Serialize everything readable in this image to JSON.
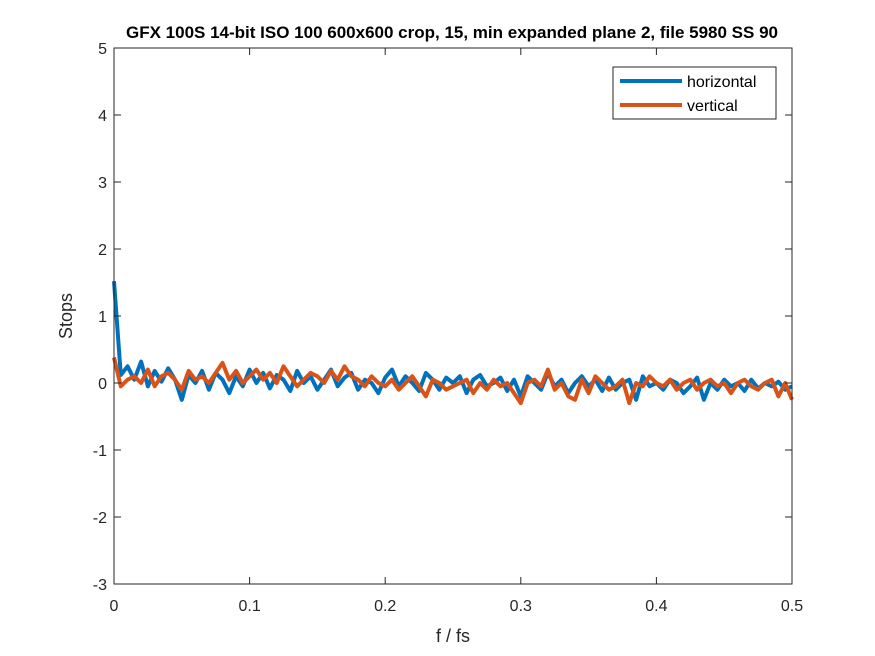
{
  "chart_data": {
    "type": "line",
    "title": "GFX 100S 14-bit ISO 100 600x600 crop, 15, min expanded plane 2, file 5980 SS 90",
    "xlabel": "f / fs",
    "ylabel": "Stops",
    "xlim": [
      0,
      0.5
    ],
    "ylim": [
      -3,
      5
    ],
    "xticks": [
      0,
      0.1,
      0.2,
      0.3,
      0.4,
      0.5
    ],
    "xtick_labels": [
      "0",
      "0.1",
      "0.2",
      "0.3",
      "0.4",
      "0.5"
    ],
    "yticks": [
      -3,
      -2,
      -1,
      0,
      1,
      2,
      3,
      4,
      5
    ],
    "ytick_labels": [
      "-3",
      "-2",
      "-1",
      "0",
      "1",
      "2",
      "3",
      "4",
      "5"
    ],
    "grid": false,
    "legend_position": "top-right",
    "series": [
      {
        "name": "horizontal",
        "color": "#0072BD",
        "x": [
          0,
          0.005,
          0.01,
          0.015,
          0.02,
          0.025,
          0.03,
          0.035,
          0.04,
          0.045,
          0.05,
          0.055,
          0.06,
          0.065,
          0.07,
          0.075,
          0.08,
          0.085,
          0.09,
          0.095,
          0.1,
          0.105,
          0.11,
          0.115,
          0.12,
          0.125,
          0.13,
          0.135,
          0.14,
          0.145,
          0.15,
          0.155,
          0.16,
          0.165,
          0.17,
          0.175,
          0.18,
          0.185,
          0.19,
          0.195,
          0.2,
          0.205,
          0.21,
          0.215,
          0.22,
          0.225,
          0.23,
          0.235,
          0.24,
          0.245,
          0.25,
          0.255,
          0.26,
          0.265,
          0.27,
          0.275,
          0.28,
          0.285,
          0.29,
          0.295,
          0.3,
          0.305,
          0.31,
          0.315,
          0.32,
          0.325,
          0.33,
          0.335,
          0.34,
          0.345,
          0.35,
          0.355,
          0.36,
          0.365,
          0.37,
          0.375,
          0.38,
          0.385,
          0.39,
          0.395,
          0.4,
          0.405,
          0.41,
          0.415,
          0.42,
          0.425,
          0.43,
          0.435,
          0.44,
          0.445,
          0.45,
          0.455,
          0.46,
          0.465,
          0.47,
          0.475,
          0.48,
          0.485,
          0.49,
          0.495,
          0.5
        ],
        "y": [
          1.52,
          0.12,
          0.25,
          0.05,
          0.32,
          -0.05,
          0.18,
          0.02,
          0.22,
          0.05,
          -0.25,
          0.12,
          0.0,
          0.18,
          -0.1,
          0.15,
          0.05,
          -0.15,
          0.1,
          -0.05,
          0.2,
          0.0,
          0.15,
          -0.08,
          0.12,
          0.05,
          -0.12,
          0.18,
          0.0,
          0.1,
          -0.1,
          0.05,
          0.2,
          -0.05,
          0.08,
          0.15,
          -0.1,
          0.05,
          0.0,
          -0.15,
          0.08,
          0.2,
          -0.05,
          0.1,
          0.0,
          -0.12,
          0.15,
          0.05,
          -0.1,
          0.08,
          0.0,
          0.1,
          -0.15,
          0.05,
          0.12,
          -0.05,
          0.0,
          0.08,
          -0.12,
          0.05,
          -0.2,
          0.1,
          0.0,
          -0.1,
          0.15,
          -0.05,
          0.05,
          -0.15,
          0.0,
          0.1,
          -0.05,
          0.05,
          -0.12,
          0.08,
          -0.1,
          0.0,
          0.05,
          -0.25,
          0.1,
          -0.05,
          0.0,
          -0.1,
          0.05,
          0.0,
          -0.15,
          -0.05,
          0.08,
          -0.25,
          0.0,
          -0.1,
          0.05,
          -0.05,
          0.0,
          -0.12,
          0.05,
          -0.08,
          0.0,
          -0.05,
          0.02,
          -0.1,
          -0.05
        ]
      },
      {
        "name": "vertical",
        "color": "#D95319",
        "x": [
          0,
          0.005,
          0.01,
          0.015,
          0.02,
          0.025,
          0.03,
          0.035,
          0.04,
          0.045,
          0.05,
          0.055,
          0.06,
          0.065,
          0.07,
          0.075,
          0.08,
          0.085,
          0.09,
          0.095,
          0.1,
          0.105,
          0.11,
          0.115,
          0.12,
          0.125,
          0.13,
          0.135,
          0.14,
          0.145,
          0.15,
          0.155,
          0.16,
          0.165,
          0.17,
          0.175,
          0.18,
          0.185,
          0.19,
          0.195,
          0.2,
          0.205,
          0.21,
          0.215,
          0.22,
          0.225,
          0.23,
          0.235,
          0.24,
          0.245,
          0.25,
          0.255,
          0.26,
          0.265,
          0.27,
          0.275,
          0.28,
          0.285,
          0.29,
          0.295,
          0.3,
          0.305,
          0.31,
          0.315,
          0.32,
          0.325,
          0.33,
          0.335,
          0.34,
          0.345,
          0.35,
          0.355,
          0.36,
          0.365,
          0.37,
          0.375,
          0.38,
          0.385,
          0.39,
          0.395,
          0.4,
          0.405,
          0.41,
          0.415,
          0.42,
          0.425,
          0.43,
          0.435,
          0.44,
          0.445,
          0.45,
          0.455,
          0.46,
          0.465,
          0.47,
          0.475,
          0.48,
          0.485,
          0.49,
          0.495,
          0.5
        ],
        "y": [
          0.38,
          -0.05,
          0.05,
          0.1,
          0.0,
          0.2,
          -0.05,
          0.1,
          0.15,
          0.05,
          -0.1,
          0.18,
          0.05,
          0.1,
          0.0,
          0.15,
          0.3,
          0.05,
          0.18,
          0.0,
          0.1,
          0.2,
          0.05,
          0.15,
          0.0,
          0.25,
          0.1,
          -0.05,
          0.05,
          0.15,
          0.1,
          0.0,
          0.18,
          0.05,
          0.25,
          0.1,
          0.05,
          -0.05,
          0.1,
          0.0,
          -0.05,
          0.05,
          -0.1,
          0.0,
          0.1,
          -0.05,
          -0.2,
          0.05,
          0.0,
          -0.1,
          -0.05,
          0.0,
          0.05,
          -0.15,
          0.0,
          -0.1,
          0.05,
          -0.05,
          0.0,
          -0.15,
          -0.3,
          0.0,
          0.05,
          -0.05,
          0.2,
          -0.1,
          0.0,
          -0.2,
          -0.25,
          0.05,
          -0.15,
          0.1,
          0.0,
          -0.1,
          -0.05,
          0.05,
          -0.3,
          0.0,
          -0.05,
          0.1,
          0.0,
          -0.05,
          0.05,
          -0.1,
          0.0,
          0.05,
          -0.1,
          0.0,
          0.05,
          -0.05,
          0.0,
          -0.15,
          0.0,
          0.05,
          -0.05,
          -0.1,
          0.0,
          0.05,
          -0.2,
          0.0,
          -0.25
        ]
      }
    ]
  }
}
